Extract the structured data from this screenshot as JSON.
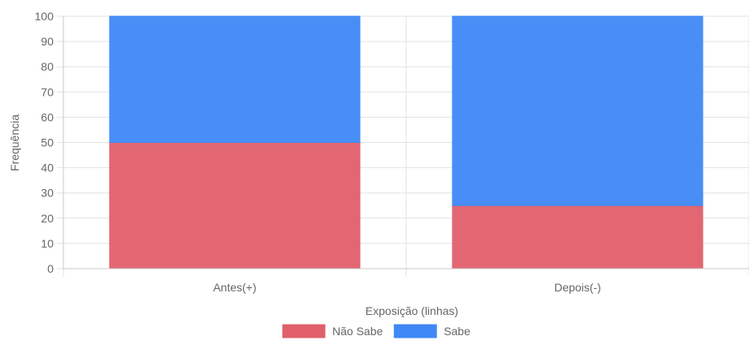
{
  "chart_data": {
    "type": "bar",
    "stacked": true,
    "categories": [
      "Antes(+)",
      "Depois(-)"
    ],
    "series": [
      {
        "name": "Não Sabe",
        "values": [
          50,
          25
        ],
        "color": "#e05f6b"
      },
      {
        "name": "Sabe",
        "values": [
          50,
          75
        ],
        "color": "#3f88f6"
      }
    ],
    "xlabel": "Exposição (linhas)",
    "ylabel": "Frequência",
    "ylim": [
      0,
      100
    ],
    "yticks": [
      0,
      10,
      20,
      30,
      40,
      50,
      60,
      70,
      80,
      90,
      100
    ],
    "grid": true,
    "legend_position": "bottom"
  }
}
